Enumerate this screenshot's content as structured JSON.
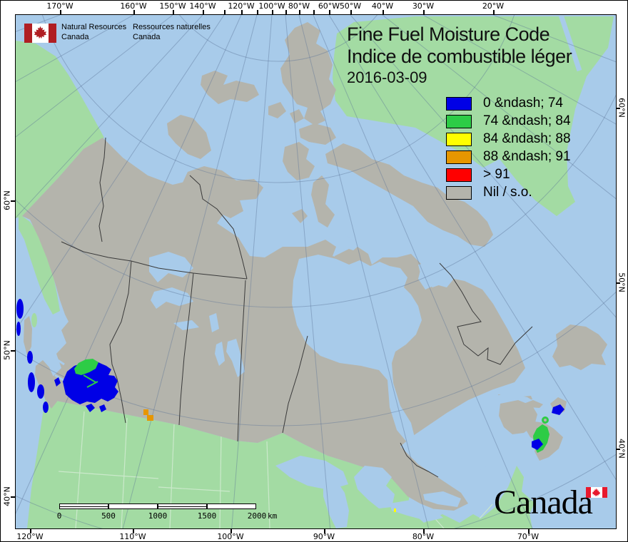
{
  "org": {
    "name_en_line1": "Natural Resources",
    "name_en_line2": "Canada",
    "name_fr_line1": "Ressources naturelles",
    "name_fr_line2": "Canada"
  },
  "title": {
    "line1": "Fine Fuel Moisture Code",
    "line2": "Indice de combustible léger",
    "date": "2016-03-09"
  },
  "legend": {
    "items": [
      {
        "label": "0 &ndash; 74",
        "color": "#0000e6"
      },
      {
        "label": "74 &ndash; 84",
        "color": "#2dcc46"
      },
      {
        "label": "84 &ndash; 88",
        "color": "#ffff00"
      },
      {
        "label": "88 &ndash; 91",
        "color": "#e69600"
      },
      {
        "label": "> 91",
        "color": "#ff0000"
      },
      {
        "label": "Nil / s.o.",
        "color": "#b4b4ac"
      }
    ]
  },
  "scalebar": {
    "labels": [
      "0",
      "500",
      "1000",
      "1500",
      "2000"
    ],
    "unit": "km"
  },
  "wordmark": "Canada",
  "axes": {
    "top": [
      "170°W",
      "160°W",
      "150°W",
      "140°W",
      "120°W",
      "100°W",
      "80°W",
      "60°W",
      "50°W",
      "40°W",
      "30°W",
      "20°W"
    ],
    "bottom": [
      "120°W",
      "110°W",
      "100°W",
      "90°W",
      "80°W",
      "70°W"
    ],
    "left": [
      "60°N",
      "50°N",
      "40°N"
    ],
    "right": [
      "60°N",
      "50°N",
      "40°N"
    ]
  },
  "map_colors": {
    "ocean": "#a8cbea",
    "non_canada_land": "#a3dba3",
    "canada_nil": "#b4b4ac",
    "province_border": "#3a3a3a",
    "flag_red": "#c8202e"
  }
}
